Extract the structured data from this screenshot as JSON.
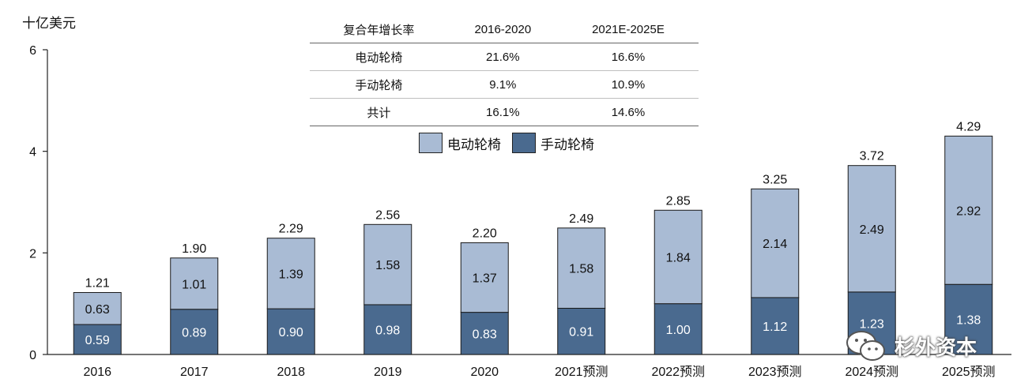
{
  "unit_label": "十亿美元",
  "cagr_table": {
    "header": [
      "复合年增长率",
      "2016-2020",
      "2021E-2025E"
    ],
    "rows": [
      [
        "电动轮椅",
        "21.6%",
        "16.6%"
      ],
      [
        "手动轮椅",
        "9.1%",
        "10.9%"
      ],
      [
        "共计",
        "16.1%",
        "14.6%"
      ]
    ]
  },
  "logo_text": "杉外资本",
  "chart_data": {
    "type": "bar",
    "stacked": true,
    "categories": [
      "2016",
      "2017",
      "2018",
      "2019",
      "2020",
      "2021预测",
      "2022预测",
      "2023预测",
      "2024预测",
      "2025预测"
    ],
    "series": [
      {
        "name": "手动轮椅",
        "color": "#4a6a8f",
        "values": [
          0.59,
          0.89,
          0.9,
          0.98,
          0.83,
          0.91,
          1.0,
          1.12,
          1.23,
          1.38
        ]
      },
      {
        "name": "电动轮椅",
        "color": "#a9bbd4",
        "values": [
          0.63,
          1.01,
          1.39,
          1.58,
          1.37,
          1.58,
          1.84,
          2.14,
          2.49,
          2.92
        ]
      }
    ],
    "value_labels": {
      "手动轮椅": [
        "0.59",
        "0.89",
        "0.90",
        "0.98",
        "0.83",
        "0.91",
        "1.00",
        "1.12",
        "1.23",
        "1.38"
      ],
      "电动轮椅": [
        "0.63",
        "1.01",
        "1.39",
        "1.58",
        "1.37",
        "1.58",
        "1.84",
        "2.14",
        "2.49",
        "2.92"
      ]
    },
    "totals": [
      "1.21",
      "1.90",
      "2.29",
      "2.56",
      "2.20",
      "2.49",
      "2.85",
      "3.25",
      "3.72",
      "4.29"
    ],
    "yticks": [
      "0",
      "2",
      "4",
      "6"
    ],
    "ylim": [
      0,
      6
    ],
    "legend": [
      "电动轮椅",
      "手动轮椅"
    ],
    "legend_position": "top-center",
    "grid": false
  }
}
